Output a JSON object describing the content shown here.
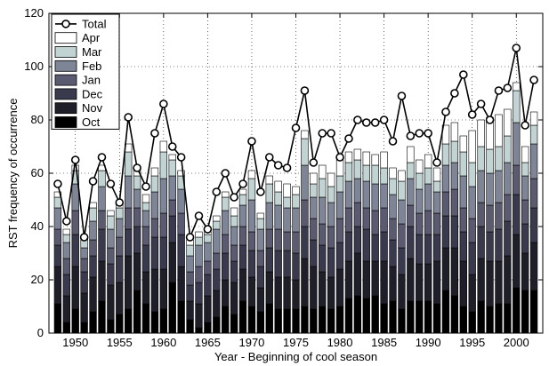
{
  "chart_data": {
    "type": "bar",
    "stacked": true,
    "title": "",
    "xlabel": "Year - Beginning of cool season",
    "ylabel": "RST frequency of occurrence",
    "xlim": [
      1947,
      2003
    ],
    "ylim": [
      0,
      120
    ],
    "xticks": [
      1950,
      1955,
      1960,
      1965,
      1970,
      1975,
      1980,
      1985,
      1990,
      1995,
      2000
    ],
    "yticks": [
      0,
      20,
      40,
      60,
      80,
      100,
      120
    ],
    "grid": true,
    "legend_position": "top-left",
    "x": [
      1948,
      1949,
      1950,
      1951,
      1952,
      1953,
      1954,
      1955,
      1956,
      1957,
      1958,
      1959,
      1960,
      1961,
      1962,
      1963,
      1964,
      1965,
      1966,
      1967,
      1968,
      1969,
      1970,
      1971,
      1972,
      1973,
      1974,
      1975,
      1976,
      1977,
      1978,
      1979,
      1980,
      1981,
      1982,
      1983,
      1984,
      1985,
      1986,
      1987,
      1988,
      1989,
      1990,
      1991,
      1992,
      1993,
      1994,
      1995,
      1996,
      1997,
      1998,
      1999,
      2000,
      2001,
      2002
    ],
    "series": [
      {
        "name": "Oct",
        "color": "#000000",
        "values": [
          11,
          4,
          9,
          4,
          8,
          12,
          5,
          7,
          9,
          16,
          11,
          8,
          9,
          19,
          12,
          5,
          2,
          4,
          6,
          10,
          7,
          12,
          10,
          8,
          11,
          9,
          9,
          9,
          10,
          9,
          10,
          9,
          10,
          13,
          14,
          13,
          14,
          11,
          12,
          9,
          12,
          12,
          12,
          11,
          16,
          14,
          10,
          8,
          12,
          10,
          11,
          11,
          17,
          16,
          16
        ]
      },
      {
        "name": "Nov",
        "color": "#1f1f2a",
        "values": [
          14,
          10,
          16,
          11,
          13,
          15,
          13,
          12,
          20,
          14,
          12,
          16,
          15,
          15,
          13,
          7,
          9,
          10,
          10,
          10,
          12,
          12,
          11,
          9,
          12,
          12,
          12,
          11,
          18,
          16,
          13,
          12,
          14,
          14,
          16,
          14,
          13,
          16,
          13,
          13,
          16,
          14,
          14,
          16,
          16,
          18,
          17,
          14,
          16,
          17,
          16,
          18,
          20,
          14,
          18
        ]
      },
      {
        "name": "Dec",
        "color": "#3a3a4e",
        "values": [
          8,
          8,
          12,
          8,
          8,
          12,
          8,
          10,
          10,
          10,
          10,
          12,
          12,
          10,
          12,
          6,
          8,
          8,
          8,
          10,
          8,
          9,
          10,
          8,
          9,
          10,
          10,
          10,
          12,
          10,
          10,
          11,
          10,
          11,
          10,
          12,
          10,
          11,
          10,
          10,
          12,
          11,
          11,
          10,
          12,
          12,
          11,
          12,
          12,
          11,
          12,
          13,
          15,
          11,
          13
        ]
      },
      {
        "name": "Jan",
        "color": "#5a5a70",
        "values": [
          6,
          6,
          9,
          5,
          6,
          7,
          6,
          7,
          8,
          7,
          7,
          7,
          9,
          6,
          8,
          5,
          6,
          5,
          6,
          7,
          6,
          7,
          7,
          6,
          7,
          8,
          7,
          8,
          10,
          8,
          8,
          8,
          9,
          9,
          9,
          8,
          9,
          9,
          8,
          9,
          8,
          8,
          9,
          8,
          9,
          10,
          9,
          9,
          9,
          10,
          10,
          10,
          11,
          9,
          11
        ]
      },
      {
        "name": "Feb",
        "color": "#7d8596",
        "values": [
          8,
          6,
          10,
          4,
          7,
          9,
          7,
          7,
          12,
          7,
          6,
          10,
          13,
          9,
          9,
          6,
          8,
          7,
          9,
          9,
          7,
          8,
          12,
          8,
          10,
          9,
          9,
          9,
          13,
          8,
          10,
          9,
          10,
          10,
          9,
          10,
          10,
          9,
          9,
          9,
          10,
          9,
          10,
          8,
          10,
          10,
          12,
          12,
          12,
          12,
          12,
          12,
          16,
          9,
          13
        ]
      },
      {
        "name": "Mar",
        "color": "#c1d3d3",
        "values": [
          4,
          3,
          5,
          3,
          5,
          6,
          5,
          4,
          9,
          5,
          3,
          6,
          10,
          6,
          5,
          4,
          3,
          3,
          3,
          5,
          4,
          4,
          8,
          4,
          7,
          5,
          4,
          5,
          10,
          5,
          7,
          6,
          6,
          7,
          7,
          6,
          7,
          6,
          6,
          7,
          6,
          6,
          6,
          4,
          8,
          8,
          9,
          9,
          9,
          9,
          9,
          10,
          12,
          5,
          7
        ]
      },
      {
        "name": "Apr",
        "color": "#ffffff",
        "values": [
          2,
          2,
          2,
          1,
          2,
          2,
          2,
          2,
          3,
          2,
          3,
          3,
          4,
          2,
          2,
          2,
          2,
          1,
          2,
          2,
          3,
          2,
          3,
          2,
          3,
          4,
          5,
          3,
          3,
          4,
          5,
          5,
          6,
          4,
          4,
          5,
          4,
          6,
          4,
          4,
          6,
          5,
          5,
          5,
          7,
          7,
          6,
          12,
          10,
          12,
          12,
          10,
          3,
          6,
          5
        ]
      },
      {
        "name": "Total",
        "values": [
          56,
          42,
          65,
          36,
          57,
          66,
          56,
          49,
          81,
          62,
          55,
          75,
          86,
          70,
          66,
          36,
          44,
          39,
          53,
          60,
          51,
          56,
          72,
          53,
          66,
          63,
          62,
          77,
          91,
          64,
          75,
          75,
          66,
          73,
          80,
          79,
          79,
          80,
          72,
          89,
          74,
          75,
          75,
          64,
          83,
          90,
          97,
          82,
          86,
          80,
          91,
          92,
          107,
          78,
          95
        ]
      }
    ]
  }
}
